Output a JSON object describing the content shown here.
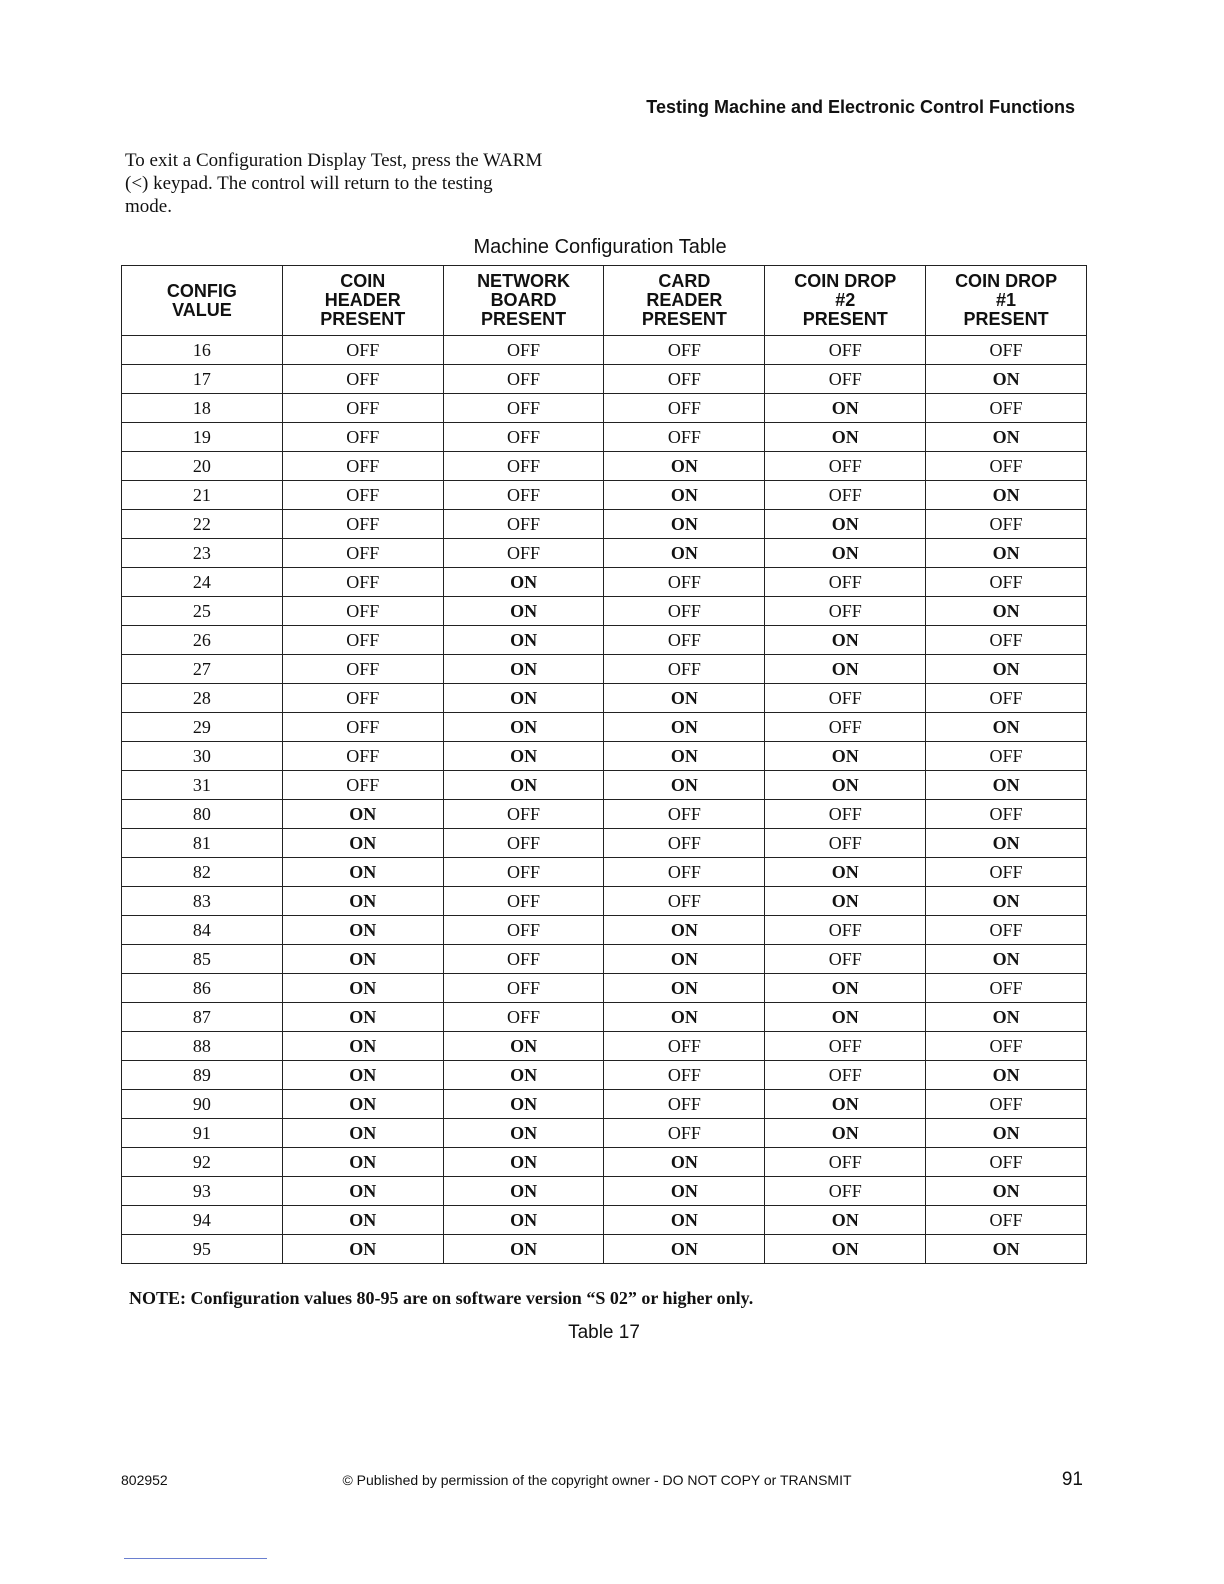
{
  "header": {
    "title": "Testing Machine and Electronic Control Functions"
  },
  "intro": [
    "To exit a Configuration Display Test, press the WARM",
    "(<) keypad. The control will return to the testing",
    "mode."
  ],
  "table": {
    "title": "Machine Configuration Table",
    "columns": [
      [
        "CONFIG",
        "VALUE"
      ],
      [
        "COIN",
        "HEADER",
        "PRESENT"
      ],
      [
        "NETWORK",
        "BOARD",
        "PRESENT"
      ],
      [
        "CARD",
        "READER",
        "PRESENT"
      ],
      [
        "COIN DROP",
        "#2",
        "PRESENT"
      ],
      [
        "COIN DROP",
        "#1",
        "PRESENT"
      ]
    ],
    "rows": [
      [
        16,
        "OFF",
        "OFF",
        "OFF",
        "OFF",
        "OFF"
      ],
      [
        17,
        "OFF",
        "OFF",
        "OFF",
        "OFF",
        "ON"
      ],
      [
        18,
        "OFF",
        "OFF",
        "OFF",
        "ON",
        "OFF"
      ],
      [
        19,
        "OFF",
        "OFF",
        "OFF",
        "ON",
        "ON"
      ],
      [
        20,
        "OFF",
        "OFF",
        "ON",
        "OFF",
        "OFF"
      ],
      [
        21,
        "OFF",
        "OFF",
        "ON",
        "OFF",
        "ON"
      ],
      [
        22,
        "OFF",
        "OFF",
        "ON",
        "ON",
        "OFF"
      ],
      [
        23,
        "OFF",
        "OFF",
        "ON",
        "ON",
        "ON"
      ],
      [
        24,
        "OFF",
        "ON",
        "OFF",
        "OFF",
        "OFF"
      ],
      [
        25,
        "OFF",
        "ON",
        "OFF",
        "OFF",
        "ON"
      ],
      [
        26,
        "OFF",
        "ON",
        "OFF",
        "ON",
        "OFF"
      ],
      [
        27,
        "OFF",
        "ON",
        "OFF",
        "ON",
        "ON"
      ],
      [
        28,
        "OFF",
        "ON",
        "ON",
        "OFF",
        "OFF"
      ],
      [
        29,
        "OFF",
        "ON",
        "ON",
        "OFF",
        "ON"
      ],
      [
        30,
        "OFF",
        "ON",
        "ON",
        "ON",
        "OFF"
      ],
      [
        31,
        "OFF",
        "ON",
        "ON",
        "ON",
        "ON"
      ],
      [
        80,
        "ON",
        "OFF",
        "OFF",
        "OFF",
        "OFF"
      ],
      [
        81,
        "ON",
        "OFF",
        "OFF",
        "OFF",
        "ON"
      ],
      [
        82,
        "ON",
        "OFF",
        "OFF",
        "ON",
        "OFF"
      ],
      [
        83,
        "ON",
        "OFF",
        "OFF",
        "ON",
        "ON"
      ],
      [
        84,
        "ON",
        "OFF",
        "ON",
        "OFF",
        "OFF"
      ],
      [
        85,
        "ON",
        "OFF",
        "ON",
        "OFF",
        "ON"
      ],
      [
        86,
        "ON",
        "OFF",
        "ON",
        "ON",
        "OFF"
      ],
      [
        87,
        "ON",
        "OFF",
        "ON",
        "ON",
        "ON"
      ],
      [
        88,
        "ON",
        "ON",
        "OFF",
        "OFF",
        "OFF"
      ],
      [
        89,
        "ON",
        "ON",
        "OFF",
        "OFF",
        "ON"
      ],
      [
        90,
        "ON",
        "ON",
        "OFF",
        "ON",
        "OFF"
      ],
      [
        91,
        "ON",
        "ON",
        "OFF",
        "ON",
        "ON"
      ],
      [
        92,
        "ON",
        "ON",
        "ON",
        "OFF",
        "OFF"
      ],
      [
        93,
        "ON",
        "ON",
        "ON",
        "OFF",
        "ON"
      ],
      [
        94,
        "ON",
        "ON",
        "ON",
        "ON",
        "OFF"
      ],
      [
        95,
        "ON",
        "ON",
        "ON",
        "ON",
        "ON"
      ]
    ],
    "note": "NOTE: Configuration values 80-95 are on software version “S 02” or higher only.",
    "caption": "Table 17"
  },
  "footer": {
    "doc_number": "802952",
    "copyright": "© Published by permission of the copyright owner - DO NOT COPY or TRANSMIT",
    "page": "91"
  }
}
